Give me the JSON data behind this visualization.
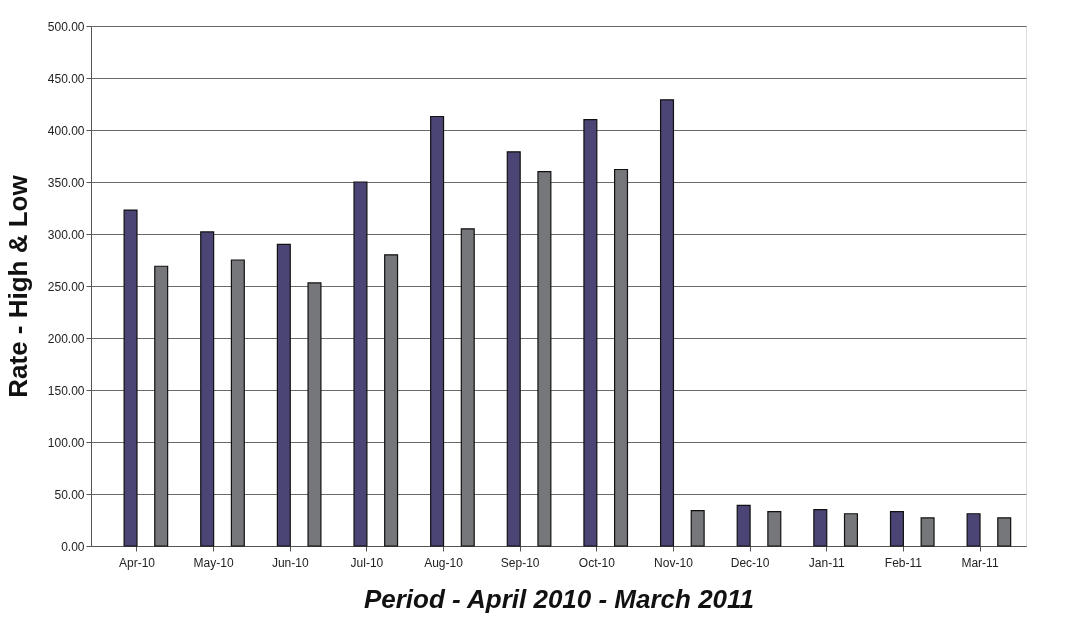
{
  "chart_data": {
    "type": "bar",
    "xlabel": "Period - April 2010 - March 2011",
    "ylabel": "Rate - High & Low",
    "categories": [
      "Apr-10",
      "May-10",
      "Jun-10",
      "Jul-10",
      "Aug-10",
      "Sep-10",
      "Oct-10",
      "Nov-10",
      "Dec-10",
      "Jan-11",
      "Feb-11",
      "Mar-11"
    ],
    "series": [
      {
        "color": "#4b4575",
        "values": [
          323,
          302,
          290,
          350,
          413,
          379,
          410,
          429,
          39,
          35,
          33,
          31
        ]
      },
      {
        "color": "#76777b",
        "values": [
          269,
          275,
          253,
          280,
          305,
          360,
          362,
          34,
          33,
          31,
          27,
          27
        ]
      }
    ],
    "ylim": [
      0,
      500
    ],
    "yticks": [
      {
        "value": 0,
        "label": "0.00"
      },
      {
        "value": 50,
        "label": "50.00"
      },
      {
        "value": 100,
        "label": "100.00"
      },
      {
        "value": 150,
        "label": "150.00"
      },
      {
        "value": 200,
        "label": "200.00"
      },
      {
        "value": 250,
        "label": "250.00"
      },
      {
        "value": 300,
        "label": "300.00"
      },
      {
        "value": 350,
        "label": "350.00"
      },
      {
        "value": 400,
        "label": "400.00"
      },
      {
        "value": 450,
        "label": "450.00"
      },
      {
        "value": 500,
        "label": "500.00"
      }
    ],
    "grid": "y",
    "legend": false
  }
}
